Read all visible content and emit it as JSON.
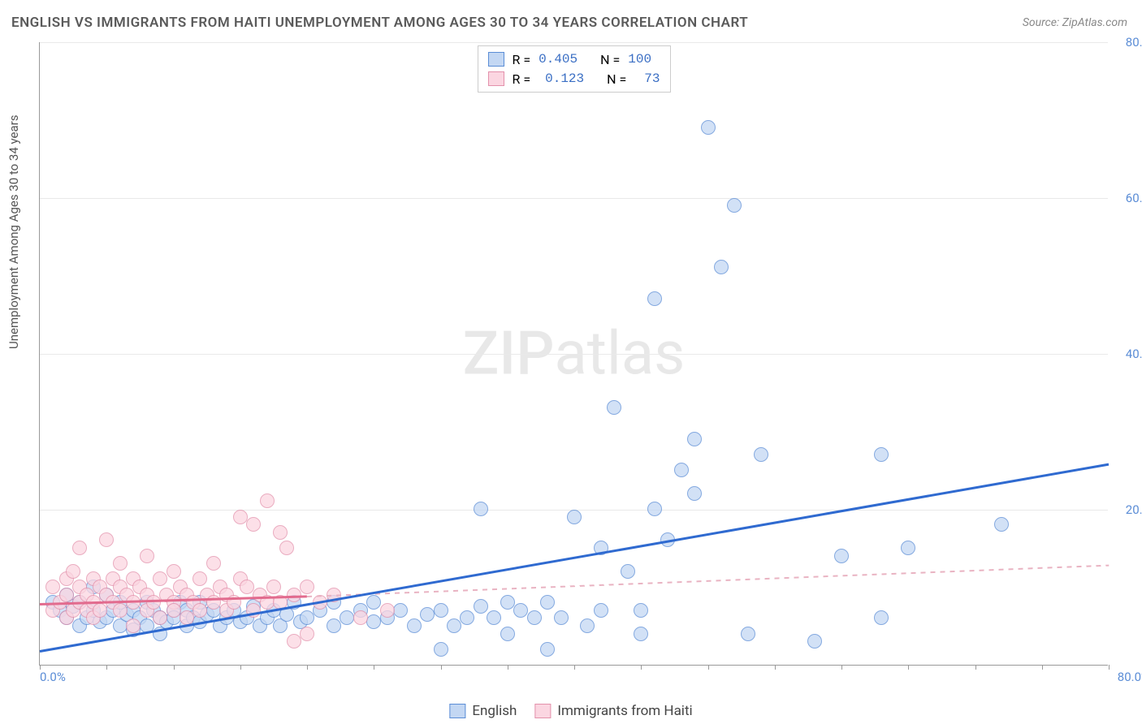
{
  "title": "ENGLISH VS IMMIGRANTS FROM HAITI UNEMPLOYMENT AMONG AGES 30 TO 34 YEARS CORRELATION CHART",
  "source": "Source: ZipAtlas.com",
  "y_axis_label": "Unemployment Among Ages 30 to 34 years",
  "watermark_a": "ZIP",
  "watermark_b": "atlas",
  "chart": {
    "type": "scatter",
    "xlim": [
      0,
      80
    ],
    "ylim": [
      0,
      80
    ],
    "x_ticks": [
      0,
      5,
      10,
      15,
      20,
      25,
      30,
      35,
      40,
      45,
      50,
      55,
      60,
      65,
      70,
      75,
      80
    ],
    "y_ticks": [
      20,
      40,
      60,
      80
    ],
    "x_tick_labels": {
      "0": "0.0%",
      "80": "80.0%"
    },
    "y_tick_labels": {
      "20": "20.0%",
      "40": "40.0%",
      "60": "60.0%",
      "80": "80.0%"
    },
    "background_color": "#ffffff",
    "grid_color": "#e9e9e9",
    "axis_color": "#999999",
    "series": [
      {
        "name": "English",
        "fill": "#c3d7f3",
        "stroke": "#5b8dd6",
        "opacity": 0.75,
        "R": "0.405",
        "N": "100",
        "trend": {
          "x1": 0,
          "y1": 2,
          "x2": 80,
          "y2": 26,
          "color": "#2f6ad0",
          "width": 3,
          "dash": false
        },
        "points": [
          [
            1,
            8
          ],
          [
            1.5,
            7
          ],
          [
            2,
            9
          ],
          [
            2,
            6
          ],
          [
            2.5,
            7.5
          ],
          [
            3,
            8
          ],
          [
            3,
            5
          ],
          [
            3.5,
            6
          ],
          [
            4,
            7
          ],
          [
            4,
            10
          ],
          [
            4.5,
            5.5
          ],
          [
            5,
            6
          ],
          [
            5,
            9
          ],
          [
            5.5,
            7
          ],
          [
            6,
            5
          ],
          [
            6,
            8
          ],
          [
            6.5,
            6.5
          ],
          [
            7,
            7
          ],
          [
            7,
            4.5
          ],
          [
            7.5,
            6
          ],
          [
            8,
            5
          ],
          [
            8,
            8
          ],
          [
            8.5,
            7
          ],
          [
            9,
            6
          ],
          [
            9,
            4
          ],
          [
            9.5,
            5.5
          ],
          [
            10,
            7
          ],
          [
            10,
            6
          ],
          [
            10.5,
            8
          ],
          [
            11,
            5
          ],
          [
            11,
            7
          ],
          [
            11.5,
            6
          ],
          [
            12,
            5.5
          ],
          [
            12,
            8
          ],
          [
            12.5,
            6.5
          ],
          [
            13,
            7
          ],
          [
            13.5,
            5
          ],
          [
            14,
            6
          ],
          [
            14.5,
            7
          ],
          [
            15,
            5.5
          ],
          [
            15.5,
            6
          ],
          [
            16,
            7.5
          ],
          [
            16.5,
            5
          ],
          [
            17,
            6
          ],
          [
            17.5,
            7
          ],
          [
            18,
            5
          ],
          [
            18.5,
            6.5
          ],
          [
            19,
            8
          ],
          [
            19.5,
            5.5
          ],
          [
            20,
            6
          ],
          [
            21,
            7
          ],
          [
            22,
            5
          ],
          [
            22,
            8
          ],
          [
            23,
            6
          ],
          [
            24,
            7
          ],
          [
            25,
            5.5
          ],
          [
            25,
            8
          ],
          [
            26,
            6
          ],
          [
            27,
            7
          ],
          [
            28,
            5
          ],
          [
            29,
            6.5
          ],
          [
            30,
            7
          ],
          [
            30,
            2
          ],
          [
            31,
            5
          ],
          [
            32,
            6
          ],
          [
            33,
            7.5
          ],
          [
            33,
            20
          ],
          [
            34,
            6
          ],
          [
            35,
            4
          ],
          [
            35,
            8
          ],
          [
            36,
            7
          ],
          [
            37,
            6
          ],
          [
            38,
            8
          ],
          [
            38,
            2
          ],
          [
            39,
            6
          ],
          [
            40,
            19
          ],
          [
            41,
            5
          ],
          [
            42,
            15
          ],
          [
            42,
            7
          ],
          [
            43,
            33
          ],
          [
            44,
            12
          ],
          [
            45,
            7
          ],
          [
            45,
            4
          ],
          [
            46,
            20
          ],
          [
            46,
            47
          ],
          [
            47,
            16
          ],
          [
            48,
            25
          ],
          [
            49,
            22
          ],
          [
            49,
            29
          ],
          [
            50,
            69
          ],
          [
            51,
            51
          ],
          [
            52,
            59
          ],
          [
            53,
            4
          ],
          [
            54,
            27
          ],
          [
            58,
            3
          ],
          [
            60,
            14
          ],
          [
            63,
            27
          ],
          [
            65,
            15
          ],
          [
            72,
            18
          ],
          [
            63,
            6
          ]
        ]
      },
      {
        "name": "Immigrants from Haiti",
        "fill": "#fbd6e1",
        "stroke": "#e391ab",
        "opacity": 0.75,
        "R": "0.123",
        "N": "73",
        "trend": {
          "x1": 0,
          "y1": 8,
          "x2": 20,
          "y2": 9,
          "color": "#e26b8e",
          "width": 2.5,
          "dash": false
        },
        "trend_ext": {
          "x1": 20,
          "y1": 9,
          "x2": 80,
          "y2": 13,
          "color": "#e9b3c2",
          "width": 1.5,
          "dash": true
        },
        "points": [
          [
            1,
            10
          ],
          [
            1,
            7
          ],
          [
            1.5,
            8
          ],
          [
            2,
            9
          ],
          [
            2,
            11
          ],
          [
            2,
            6
          ],
          [
            2.5,
            7
          ],
          [
            2.5,
            12
          ],
          [
            3,
            8
          ],
          [
            3,
            10
          ],
          [
            3,
            15
          ],
          [
            3.5,
            7
          ],
          [
            3.5,
            9
          ],
          [
            4,
            8
          ],
          [
            4,
            11
          ],
          [
            4,
            6
          ],
          [
            4.5,
            10
          ],
          [
            4.5,
            7
          ],
          [
            5,
            9
          ],
          [
            5,
            16
          ],
          [
            5.5,
            8
          ],
          [
            5.5,
            11
          ],
          [
            6,
            7
          ],
          [
            6,
            10
          ],
          [
            6,
            13
          ],
          [
            6.5,
            9
          ],
          [
            7,
            8
          ],
          [
            7,
            11
          ],
          [
            7,
            5
          ],
          [
            7.5,
            10
          ],
          [
            8,
            7
          ],
          [
            8,
            9
          ],
          [
            8,
            14
          ],
          [
            8.5,
            8
          ],
          [
            9,
            11
          ],
          [
            9,
            6
          ],
          [
            9.5,
            9
          ],
          [
            10,
            8
          ],
          [
            10,
            12
          ],
          [
            10,
            7
          ],
          [
            10.5,
            10
          ],
          [
            11,
            9
          ],
          [
            11,
            6
          ],
          [
            11.5,
            8
          ],
          [
            12,
            11
          ],
          [
            12,
            7
          ],
          [
            12.5,
            9
          ],
          [
            13,
            8
          ],
          [
            13,
            13
          ],
          [
            13.5,
            10
          ],
          [
            14,
            7
          ],
          [
            14,
            9
          ],
          [
            14.5,
            8
          ],
          [
            15,
            19
          ],
          [
            15,
            11
          ],
          [
            15.5,
            10
          ],
          [
            16,
            7
          ],
          [
            16,
            18
          ],
          [
            16.5,
            9
          ],
          [
            17,
            8
          ],
          [
            17,
            21
          ],
          [
            17.5,
            10
          ],
          [
            18,
            17
          ],
          [
            18,
            8
          ],
          [
            18.5,
            15
          ],
          [
            19,
            9
          ],
          [
            19,
            3
          ],
          [
            20,
            10
          ],
          [
            20,
            4
          ],
          [
            21,
            8
          ],
          [
            22,
            9
          ],
          [
            24,
            6
          ],
          [
            26,
            7
          ]
        ]
      }
    ]
  },
  "legend_top": {
    "rows": [
      {
        "swatch": "blue",
        "r_label": "R =",
        "r_val": "0.405",
        "n_label": "N =",
        "n_val": "100"
      },
      {
        "swatch": "pink",
        "r_label": "R =",
        "r_val": "0.123",
        "n_label": "N =",
        "n_val": "73"
      }
    ]
  },
  "legend_bottom": {
    "items": [
      {
        "swatch": "blue",
        "label": "English"
      },
      {
        "swatch": "pink",
        "label": "Immigrants from Haiti"
      }
    ]
  }
}
